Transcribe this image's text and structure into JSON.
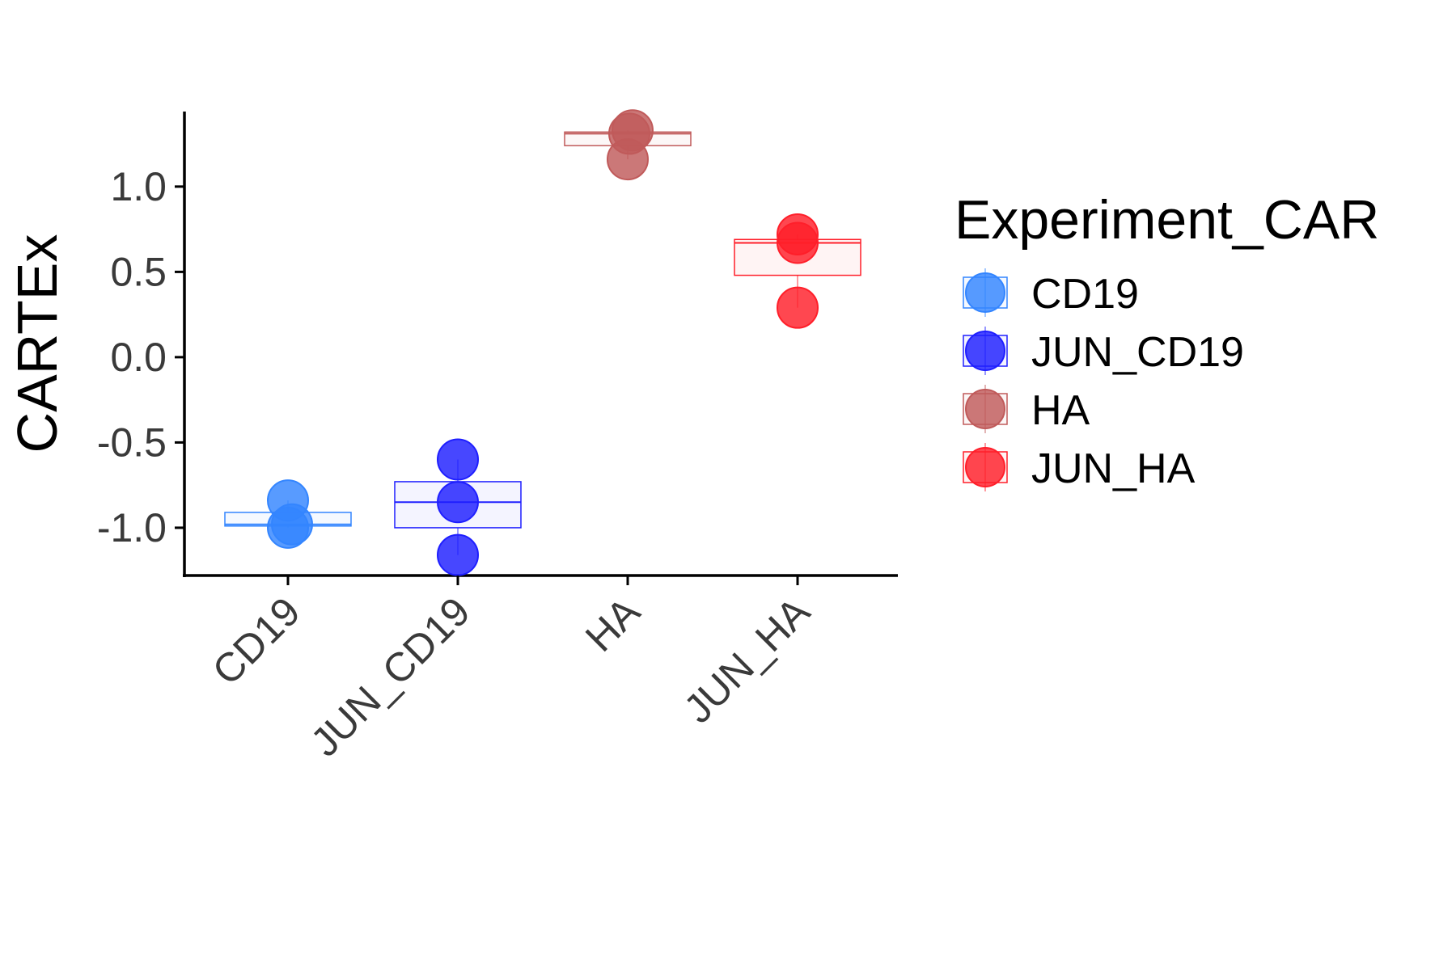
{
  "chart_data": {
    "type": "box",
    "title": "",
    "xlabel": "",
    "ylabel": "CARTEx",
    "ylim": [
      -1.28,
      1.44
    ],
    "y_ticks": [
      1.0,
      0.5,
      0.0,
      -0.5,
      -1.0
    ],
    "y_tick_labels": [
      "1.0",
      "0.5",
      "0.0",
      "-0.5",
      "-1.0"
    ],
    "categories": [
      "CD19",
      "JUN_CD19",
      "HA",
      "JUN_HA"
    ],
    "grid": false,
    "legend": {
      "title": "Experiment_CAR",
      "placement": "right",
      "entries": [
        {
          "label": "CD19",
          "color": "#3385ff"
        },
        {
          "label": "JUN_CD19",
          "color": "#1f1fff"
        },
        {
          "label": "HA",
          "color": "#c05a5a"
        },
        {
          "label": "JUN_HA",
          "color": "#ff1f2a"
        }
      ]
    },
    "series": [
      {
        "category": "CD19",
        "color": "#3385ff",
        "points": [
          -0.84,
          -0.98,
          -1.0
        ],
        "box": {
          "min": -1.0,
          "q1": -0.99,
          "median": -0.98,
          "q3": -0.91,
          "max": -0.84
        }
      },
      {
        "category": "JUN_CD19",
        "color": "#1f1fff",
        "points": [
          -0.6,
          -0.85,
          -1.16
        ],
        "box": {
          "min": -1.16,
          "q1": -1.0,
          "median": -0.85,
          "q3": -0.73,
          "max": -0.6
        }
      },
      {
        "category": "HA",
        "color": "#c05a5a",
        "points": [
          1.31,
          1.33,
          1.16
        ],
        "box": {
          "min": 1.16,
          "q1": 1.24,
          "median": 1.31,
          "q3": 1.32,
          "max": 1.33
        }
      },
      {
        "category": "JUN_HA",
        "color": "#ff1f2a",
        "points": [
          0.72,
          0.67,
          0.29
        ],
        "box": {
          "min": 0.29,
          "q1": 0.48,
          "median": 0.67,
          "q3": 0.69,
          "max": 0.72
        }
      }
    ]
  }
}
